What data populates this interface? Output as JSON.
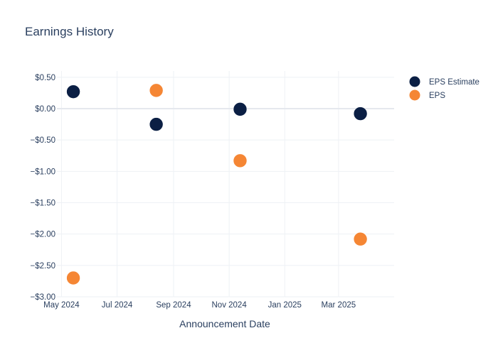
{
  "colors": {
    "eps_estimate": "#0b1f44",
    "eps": "#f58634",
    "grid": "#eef1f5",
    "zeroline": "#e5e8ee",
    "text": "#2a3f5f"
  },
  "chart_data": {
    "type": "scatter",
    "title": "Earnings History",
    "xlabel": "Announcement Date",
    "ylabel": "",
    "x_tick_labels": [
      "May 2024",
      "Jul 2024",
      "Sep 2024",
      "Nov 2024",
      "Jan 2025",
      "Mar 2025"
    ],
    "x_ticks": [
      "2024-05-01",
      "2024-07-01",
      "2024-09-01",
      "2024-11-01",
      "2025-01-01",
      "2025-03-01"
    ],
    "xlim": [
      "2024-04-26",
      "2025-05-01"
    ],
    "y_tick_labels": [
      "$0.50",
      "$0.00",
      "−$0.50",
      "−$1.00",
      "−$1.50",
      "−$2.00",
      "−$2.50",
      "−$3.00"
    ],
    "y_ticks": [
      0.5,
      0,
      -0.5,
      -1,
      -1.5,
      -2,
      -2.5,
      -3
    ],
    "ylim": [
      -3,
      0.6
    ],
    "grid": true,
    "legend_position": "top-right",
    "series": [
      {
        "name": "EPS Estimate",
        "x": [
          "2024-05-14",
          "2024-08-13",
          "2024-11-13",
          "2025-03-25"
        ],
        "y": [
          0.27,
          -0.25,
          -0.01,
          -0.08
        ]
      },
      {
        "name": "EPS",
        "x": [
          "2024-05-14",
          "2024-08-13",
          "2024-11-13",
          "2025-03-25"
        ],
        "y": [
          -2.7,
          0.29,
          -0.83,
          -2.08
        ]
      }
    ]
  }
}
